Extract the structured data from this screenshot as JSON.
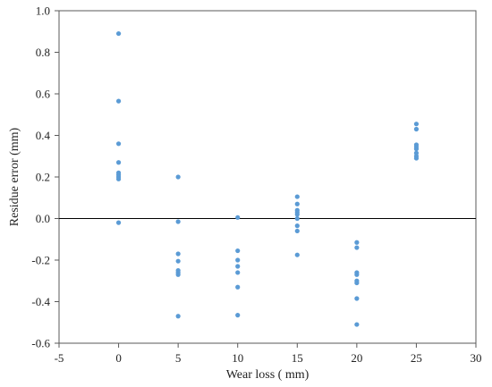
{
  "chart_data": {
    "type": "scatter",
    "title": "",
    "xlabel": "Wear loss ( mm)",
    "ylabel": "Residue error (mm)",
    "xlim": [
      -5,
      30
    ],
    "ylim": [
      -0.6,
      1.0
    ],
    "xticks": [
      -5,
      0,
      5,
      10,
      15,
      20,
      25,
      30
    ],
    "yticks": [
      -0.6,
      -0.4,
      -0.2,
      0.0,
      0.2,
      0.4,
      0.6,
      0.8,
      1.0
    ],
    "xtick_labels": [
      "-5",
      "0",
      "5",
      "10",
      "15",
      "20",
      "25",
      "30"
    ],
    "ytick_labels": [
      "-0.6",
      "-0.4",
      "-0.2",
      "0.0",
      "0.2",
      "0.4",
      "0.6",
      "0.8",
      "1.0"
    ],
    "grid": false,
    "reference_line_y": 0,
    "marker_color": "#5B9BD5",
    "series": [
      {
        "points": [
          [
            0,
            0.89
          ],
          [
            0,
            0.565
          ],
          [
            0,
            0.36
          ],
          [
            0,
            0.27
          ],
          [
            0,
            0.22
          ],
          [
            0,
            0.21
          ],
          [
            0,
            0.2
          ],
          [
            0,
            0.19
          ],
          [
            0,
            -0.02
          ],
          [
            5,
            0.2
          ],
          [
            5,
            -0.015
          ],
          [
            5,
            -0.17
          ],
          [
            5,
            -0.205
          ],
          [
            5,
            -0.25
          ],
          [
            5,
            -0.26
          ],
          [
            5,
            -0.27
          ],
          [
            5,
            -0.47
          ],
          [
            10,
            0.005
          ],
          [
            10,
            -0.155
          ],
          [
            10,
            -0.2
          ],
          [
            10,
            -0.23
          ],
          [
            10,
            -0.26
          ],
          [
            10,
            -0.33
          ],
          [
            10,
            -0.465
          ],
          [
            15,
            0.105
          ],
          [
            15,
            0.07
          ],
          [
            15,
            0.04
          ],
          [
            15,
            0.03
          ],
          [
            15,
            0.02
          ],
          [
            15,
            0.0
          ],
          [
            15,
            -0.035
          ],
          [
            15,
            -0.06
          ],
          [
            15,
            -0.175
          ],
          [
            20,
            -0.115
          ],
          [
            20,
            -0.14
          ],
          [
            20,
            -0.26
          ],
          [
            20,
            -0.27
          ],
          [
            20,
            -0.3
          ],
          [
            20,
            -0.31
          ],
          [
            20,
            -0.385
          ],
          [
            20,
            -0.51
          ],
          [
            25,
            0.455
          ],
          [
            25,
            0.43
          ],
          [
            25,
            0.355
          ],
          [
            25,
            0.345
          ],
          [
            25,
            0.335
          ],
          [
            25,
            0.315
          ],
          [
            25,
            0.3
          ],
          [
            25,
            0.29
          ]
        ]
      }
    ]
  }
}
